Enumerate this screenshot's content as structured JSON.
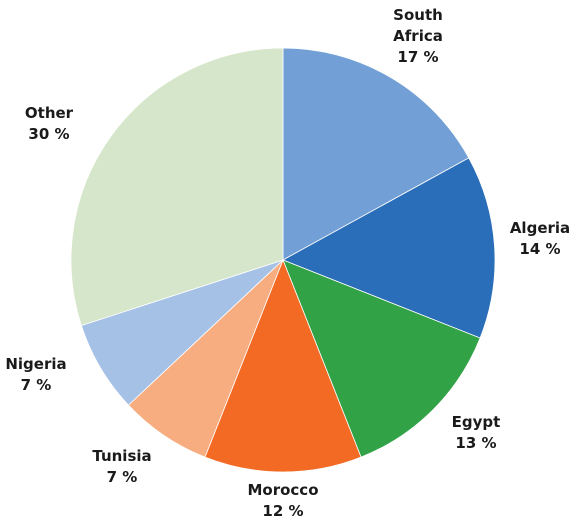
{
  "chart_data": {
    "type": "pie",
    "title": "",
    "legend": "none",
    "slices": [
      {
        "label_lines": [
          "South",
          "Africa"
        ],
        "value": 17,
        "value_label": "17 %",
        "color": "#729fd6"
      },
      {
        "label_lines": [
          "Algeria"
        ],
        "value": 14,
        "value_label": "14 %",
        "color": "#2a6db8"
      },
      {
        "label_lines": [
          "Egypt"
        ],
        "value": 13,
        "value_label": "13 %",
        "color": "#32a246"
      },
      {
        "label_lines": [
          "Morocco"
        ],
        "value": 12,
        "value_label": "12 %",
        "color": "#f26a24"
      },
      {
        "label_lines": [
          "Tunisia"
        ],
        "value": 7,
        "value_label": "7 %",
        "color": "#f8ad80"
      },
      {
        "label_lines": [
          "Nigeria"
        ],
        "value": 7,
        "value_label": "7 %",
        "color": "#a6c1e6"
      },
      {
        "label_lines": [
          "Other"
        ],
        "value": 30,
        "value_label": "30 %",
        "color": "#d5e6ca"
      }
    ]
  }
}
